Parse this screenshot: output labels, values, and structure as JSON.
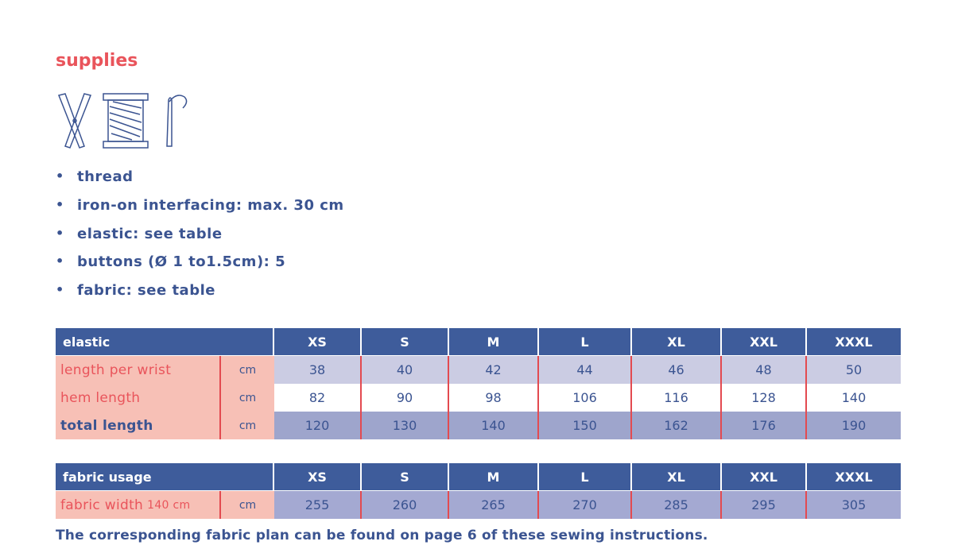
{
  "header": {
    "title": "supplies"
  },
  "bullets": [
    "thread",
    "iron-on interfacing: max. 30 cm",
    "elastic: see table",
    "buttons (Ø 1 to1.5cm): 5",
    "fabric: see table"
  ],
  "tables": [
    {
      "title": "elastic",
      "sizes": [
        "XS",
        "S",
        "M",
        "L",
        "XL",
        "XXL",
        "XXXL"
      ],
      "rows": [
        {
          "label": "length per wrist",
          "unit": "cm",
          "values": [
            38,
            40,
            42,
            44,
            46,
            48,
            50
          ]
        },
        {
          "label": "hem length",
          "unit": "cm",
          "values": [
            82,
            90,
            98,
            106,
            116,
            128,
            140
          ]
        },
        {
          "label": "total length",
          "unit": "cm",
          "values": [
            120,
            130,
            140,
            150,
            162,
            176,
            190
          ]
        }
      ]
    },
    {
      "title": "fabric usage",
      "sizes": [
        "XS",
        "S",
        "M",
        "L",
        "XL",
        "XXL",
        "XXXL"
      ],
      "rows": [
        {
          "label": "fabric width",
          "label_note": "140 cm",
          "unit": "cm",
          "values": [
            255,
            260,
            265,
            270,
            285,
            295,
            305
          ]
        }
      ]
    }
  ],
  "footer": "The corresponding fabric plan can be found on page 6 of these sewing instructions."
}
